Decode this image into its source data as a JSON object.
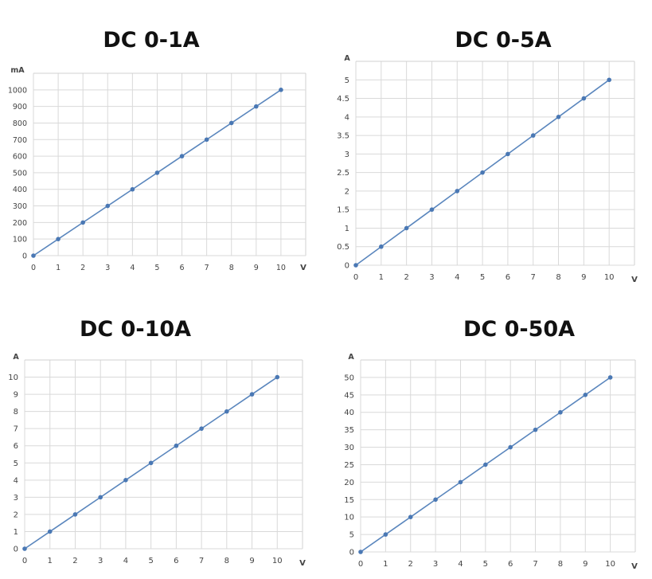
{
  "colors": {
    "line": "#5a86bd",
    "point": "#4a78b4",
    "grid": "#d9d9d9",
    "frame": "#d0d0d0",
    "text": "#444444"
  },
  "chart_data": [
    {
      "type": "line",
      "title": "DC 0-1A",
      "xlabel": "V",
      "ylabel": "mA",
      "x": [
        0,
        1,
        2,
        3,
        4,
        5,
        6,
        7,
        8,
        9,
        10
      ],
      "series": [
        {
          "values": [
            0,
            100,
            200,
            300,
            400,
            500,
            600,
            700,
            800,
            900,
            1000
          ]
        }
      ],
      "xticks": [
        "0",
        "1",
        "2",
        "3",
        "4",
        "5",
        "6",
        "7",
        "8",
        "9",
        "10"
      ],
      "yticks": [
        "0",
        "100",
        "200",
        "300",
        "400",
        "500",
        "600",
        "700",
        "800",
        "900",
        "1000"
      ],
      "xlim": [
        0,
        10
      ],
      "ylim": [
        0,
        1000
      ],
      "grid": true,
      "legend": "none"
    },
    {
      "type": "line",
      "title": "DC 0-5A",
      "xlabel": "V",
      "ylabel": "A",
      "x": [
        0,
        1,
        2,
        3,
        4,
        5,
        6,
        7,
        8,
        9,
        10
      ],
      "series": [
        {
          "values": [
            0,
            0.5,
            1,
            1.5,
            2,
            2.5,
            3,
            3.5,
            4,
            4.5,
            5
          ]
        }
      ],
      "xticks": [
        "0",
        "1",
        "2",
        "3",
        "4",
        "5",
        "6",
        "7",
        "8",
        "9",
        "10"
      ],
      "yticks": [
        "0",
        "0.5",
        "1",
        "1.5",
        "2",
        "2.5",
        "3",
        "3.5",
        "4",
        "4.5",
        "5"
      ],
      "xlim": [
        0,
        10
      ],
      "ylim": [
        0,
        5
      ],
      "grid": true,
      "legend": "none"
    },
    {
      "type": "line",
      "title": "DC 0-10A",
      "xlabel": "V",
      "ylabel": "A",
      "x": [
        0,
        1,
        2,
        3,
        4,
        5,
        6,
        7,
        8,
        9,
        10
      ],
      "series": [
        {
          "values": [
            0,
            1,
            2,
            3,
            4,
            5,
            6,
            7,
            8,
            9,
            10
          ]
        }
      ],
      "xticks": [
        "0",
        "1",
        "2",
        "3",
        "4",
        "5",
        "6",
        "7",
        "8",
        "9",
        "10"
      ],
      "yticks": [
        "0",
        "1",
        "2",
        "3",
        "4",
        "5",
        "6",
        "7",
        "8",
        "9",
        "10"
      ],
      "xlim": [
        0,
        10
      ],
      "ylim": [
        0,
        10
      ],
      "grid": true,
      "legend": "none"
    },
    {
      "type": "line",
      "title": "DC 0-50A",
      "xlabel": "V",
      "ylabel": "A",
      "x": [
        0,
        1,
        2,
        3,
        4,
        5,
        6,
        7,
        8,
        9,
        10
      ],
      "series": [
        {
          "values": [
            0,
            5,
            10,
            15,
            20,
            25,
            30,
            35,
            40,
            45,
            50
          ]
        }
      ],
      "xticks": [
        "0",
        "1",
        "2",
        "3",
        "4",
        "5",
        "6",
        "7",
        "8",
        "9",
        "10"
      ],
      "yticks": [
        "0",
        "5",
        "10",
        "15",
        "20",
        "25",
        "30",
        "35",
        "40",
        "45",
        "50"
      ],
      "xlim": [
        0,
        10
      ],
      "ylim": [
        0,
        50
      ],
      "grid": true,
      "legend": "none"
    }
  ]
}
